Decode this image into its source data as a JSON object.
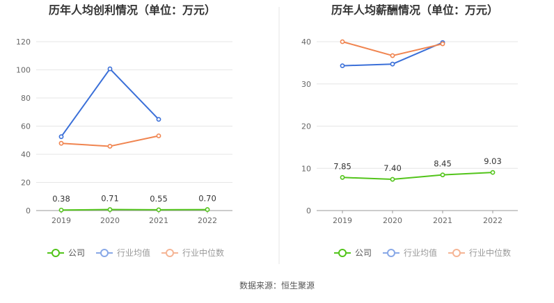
{
  "source": "数据来源：恒生聚源",
  "colors": {
    "company": "#52c41a",
    "avg": "#3a6fd8",
    "median": "#f0844f",
    "grid": "#e6e6e6",
    "axis": "#999999",
    "divider": "#e5e5e5"
  },
  "chart_data": [
    {
      "type": "line",
      "title": "历年人均创利情况（单位：万元）",
      "categories": [
        "2019",
        "2020",
        "2021",
        "2022"
      ],
      "ylim": [
        0,
        120
      ],
      "yticks": [
        0,
        20,
        40,
        60,
        80,
        100,
        120
      ],
      "grid": true,
      "legend_position": "bottom",
      "series": [
        {
          "name": "公司",
          "key": "company",
          "values": [
            0.38,
            0.71,
            0.55,
            0.7
          ],
          "labels": [
            "0.38",
            "0.71",
            "0.55",
            "0.70"
          ]
        },
        {
          "name": "行业均值",
          "key": "avg",
          "values": [
            52.5,
            100.7,
            64.8,
            null
          ]
        },
        {
          "name": "行业中位数",
          "key": "median",
          "values": [
            47.8,
            45.7,
            53.1,
            null
          ]
        }
      ]
    },
    {
      "type": "line",
      "title": "历年人均薪酬情况（单位：万元）",
      "categories": [
        "2019",
        "2020",
        "2021",
        "2022"
      ],
      "ylim": [
        0,
        40
      ],
      "yticks": [
        0,
        10,
        20,
        30,
        40
      ],
      "grid": true,
      "legend_position": "bottom",
      "series": [
        {
          "name": "公司",
          "key": "company",
          "values": [
            7.85,
            7.4,
            8.45,
            9.03
          ],
          "labels": [
            "7.85",
            "7.40",
            "8.45",
            "9.03"
          ]
        },
        {
          "name": "行业均值",
          "key": "avg",
          "values": [
            34.3,
            34.7,
            39.8,
            null
          ]
        },
        {
          "name": "行业中位数",
          "key": "median",
          "values": [
            40.0,
            36.7,
            39.5,
            null
          ]
        }
      ]
    }
  ]
}
